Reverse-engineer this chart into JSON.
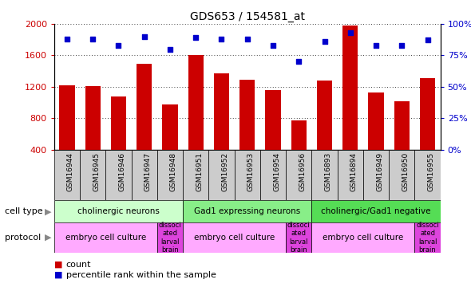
{
  "title": "GDS653 / 154581_at",
  "samples": [
    "GSM16944",
    "GSM16945",
    "GSM16946",
    "GSM16947",
    "GSM16948",
    "GSM16951",
    "GSM16952",
    "GSM16953",
    "GSM16954",
    "GSM16956",
    "GSM16893",
    "GSM16894",
    "GSM16949",
    "GSM16950",
    "GSM16955"
  ],
  "counts": [
    1220,
    1210,
    1080,
    1490,
    970,
    1600,
    1370,
    1290,
    1160,
    770,
    1280,
    1980,
    1130,
    1010,
    1310
  ],
  "percentile": [
    88,
    88,
    83,
    90,
    80,
    89,
    88,
    88,
    83,
    70,
    86,
    93,
    83,
    83,
    87
  ],
  "ylim_left": [
    400,
    2000
  ],
  "ylim_right": [
    0,
    100
  ],
  "yticks_left": [
    400,
    800,
    1200,
    1600,
    2000
  ],
  "yticks_right": [
    0,
    25,
    50,
    75,
    100
  ],
  "bar_color": "#cc0000",
  "dot_color": "#0000cc",
  "cell_type_groups": [
    {
      "label": "cholinergic neurons",
      "start": 0,
      "end": 5,
      "color": "#ccffcc"
    },
    {
      "label": "Gad1 expressing neurons",
      "start": 5,
      "end": 10,
      "color": "#88ee88"
    },
    {
      "label": "cholinergic/Gad1 negative",
      "start": 10,
      "end": 15,
      "color": "#55dd55"
    }
  ],
  "protocol_groups": [
    {
      "label": "embryo cell culture",
      "start": 0,
      "end": 4,
      "color": "#ffaaff"
    },
    {
      "label": "dissoci\nated\nlarval\nbrain",
      "start": 4,
      "end": 5,
      "color": "#dd44dd"
    },
    {
      "label": "embryo cell culture",
      "start": 5,
      "end": 9,
      "color": "#ffaaff"
    },
    {
      "label": "dissoci\nated\nlarval\nbrain",
      "start": 9,
      "end": 10,
      "color": "#dd44dd"
    },
    {
      "label": "embryo cell culture",
      "start": 10,
      "end": 14,
      "color": "#ffaaff"
    },
    {
      "label": "dissoci\nated\nlarval\nbrain",
      "start": 14,
      "end": 15,
      "color": "#dd44dd"
    }
  ],
  "cell_type_label": "cell type",
  "protocol_label": "protocol",
  "legend_count_label": "count",
  "legend_pct_label": "percentile rank within the sample",
  "xtick_bg": "#cccccc",
  "background_color": "#ffffff"
}
